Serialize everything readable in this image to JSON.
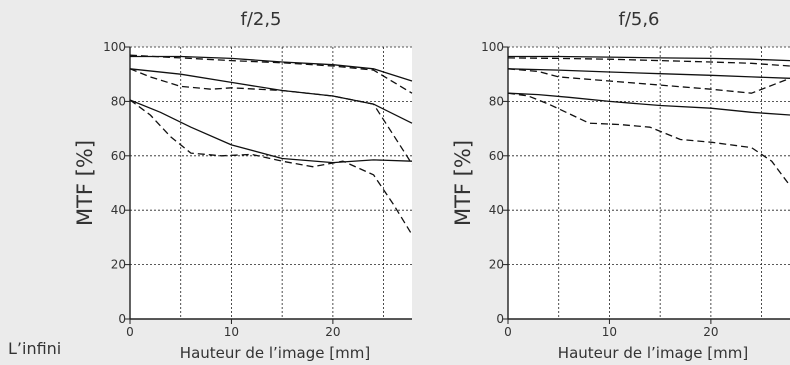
{
  "footer_label": "L’infini",
  "chart_data": [
    {
      "type": "line",
      "title": "f/2,5",
      "xlabel": "Hauteur de l’image [mm]",
      "ylabel": "MTF [%]",
      "xlim": [
        0,
        27.8
      ],
      "ylim": [
        0,
        100
      ],
      "xticks": [
        "0",
        "10",
        "20"
      ],
      "yticks": [
        "0",
        "20",
        "40",
        "60",
        "80",
        "100"
      ],
      "grid": true,
      "series": [
        {
          "style": "solid",
          "x": [
            0,
            5,
            10,
            15,
            20,
            24,
            27.8
          ],
          "y": [
            96.5,
            96.5,
            95.8,
            94.5,
            93.5,
            92,
            87.5
          ]
        },
        {
          "style": "dashed",
          "x": [
            0,
            5,
            10,
            15,
            20,
            24,
            27.8
          ],
          "y": [
            97,
            96,
            95,
            94.2,
            93,
            91.5,
            83
          ]
        },
        {
          "style": "solid",
          "x": [
            0,
            5,
            10,
            15,
            20,
            24,
            27.8
          ],
          "y": [
            92,
            90,
            87,
            84,
            82,
            79,
            72
          ]
        },
        {
          "style": "dashed",
          "x": [
            0,
            2,
            5,
            8,
            10,
            15,
            20,
            24,
            27.8
          ],
          "y": [
            92,
            89,
            85.5,
            84.5,
            85,
            84,
            82,
            79,
            57
          ]
        },
        {
          "style": "solid",
          "x": [
            0,
            3,
            6,
            10,
            15,
            20,
            24,
            27.8
          ],
          "y": [
            80.5,
            76,
            70.5,
            64,
            59,
            57.5,
            58.5,
            58
          ]
        },
        {
          "style": "dashed",
          "x": [
            0,
            2,
            4,
            6,
            9,
            12,
            15,
            18,
            21,
            24,
            26,
            27.8
          ],
          "y": [
            80.5,
            75,
            67,
            61,
            60,
            60.5,
            58,
            56,
            58,
            53,
            42,
            31
          ]
        }
      ]
    },
    {
      "type": "line",
      "title": "f/5,6",
      "xlabel": "Hauteur de l’image [mm]",
      "ylabel": "MTF [%]",
      "xlim": [
        0,
        27.8
      ],
      "ylim": [
        0,
        100
      ],
      "xticks": [
        "0",
        "10",
        "20"
      ],
      "yticks": [
        "0",
        "20",
        "40",
        "60",
        "80",
        "100"
      ],
      "grid": true,
      "series": [
        {
          "style": "solid",
          "x": [
            0,
            5,
            10,
            15,
            20,
            24,
            27.8
          ],
          "y": [
            96.5,
            96.5,
            96.3,
            96,
            95.8,
            95.5,
            95
          ]
        },
        {
          "style": "dashed",
          "x": [
            0,
            5,
            10,
            15,
            20,
            24,
            27.8
          ],
          "y": [
            96,
            95.8,
            95.5,
            95,
            94.5,
            94,
            93
          ]
        },
        {
          "style": "solid",
          "x": [
            0,
            5,
            10,
            15,
            20,
            24,
            27.8
          ],
          "y": [
            92,
            91.5,
            90.8,
            90.2,
            89.6,
            89,
            88.5
          ]
        },
        {
          "style": "dashed",
          "x": [
            0,
            3,
            5,
            10,
            15,
            20,
            24,
            27.8
          ],
          "y": [
            92,
            91,
            89,
            87.5,
            86,
            84.5,
            83,
            88.5
          ]
        },
        {
          "style": "solid",
          "x": [
            0,
            3,
            6,
            10,
            15,
            20,
            24,
            27.8
          ],
          "y": [
            83,
            82.5,
            81.5,
            80,
            78.5,
            77.5,
            76,
            75
          ]
        },
        {
          "style": "dashed",
          "x": [
            0,
            2,
            4,
            6,
            8,
            11,
            14,
            17,
            20,
            24,
            26,
            27.8
          ],
          "y": [
            83,
            82,
            79,
            75.5,
            72,
            71.5,
            70.5,
            66,
            65,
            63,
            58,
            49
          ]
        }
      ]
    }
  ]
}
